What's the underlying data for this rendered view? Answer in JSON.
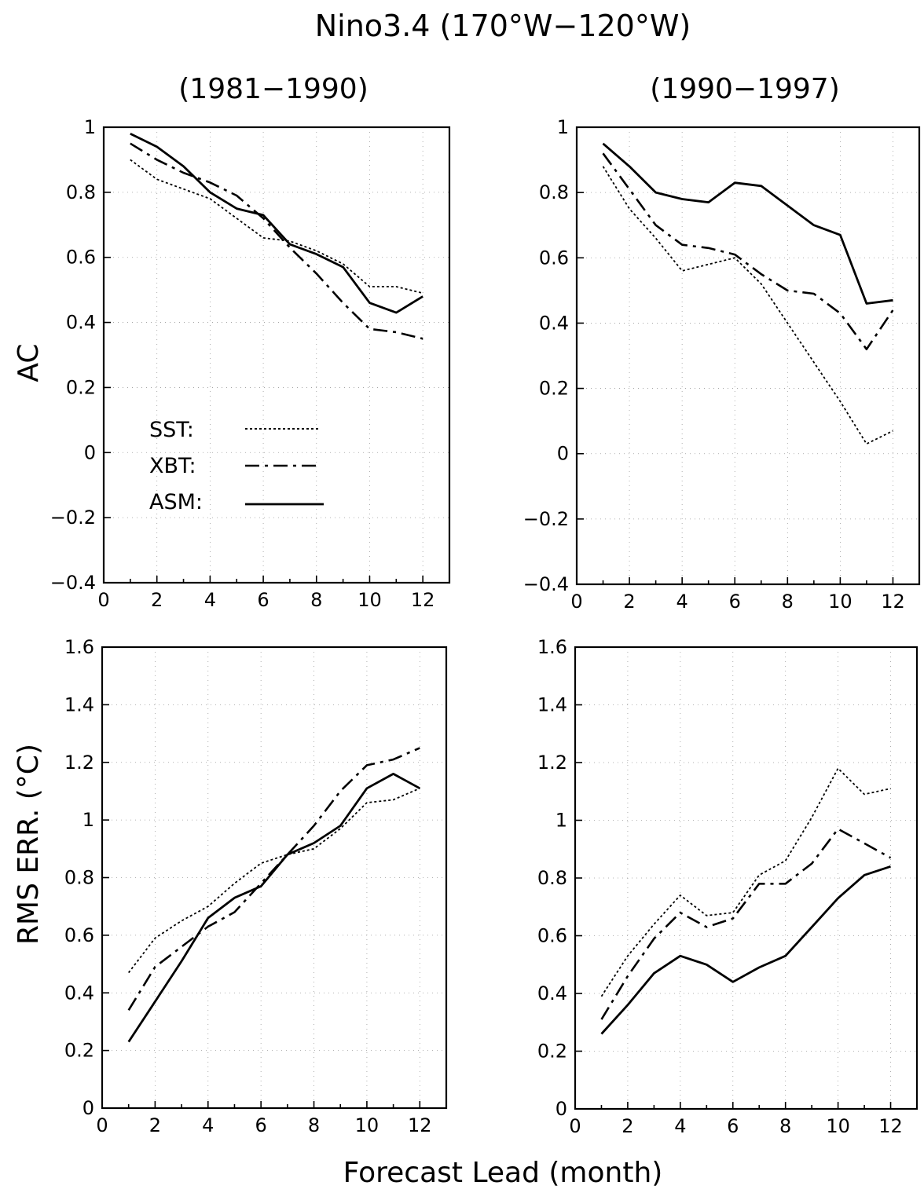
{
  "figure": {
    "title": "Nino3.4 (170°W−120°W)",
    "col_titles": [
      "(1981−1990)",
      "(1990−1997)"
    ],
    "row_ylabels": [
      "AC",
      "RMS ERR. (°C)"
    ],
    "xlabel": "Forecast Lead (month)",
    "legend": [
      {
        "label": "SST:",
        "style": "dotted"
      },
      {
        "label": "XBT:",
        "style": "dashdot"
      },
      {
        "label": "ASM:",
        "style": "solid"
      }
    ]
  },
  "chart_data": [
    {
      "type": "line",
      "panel": "top-left",
      "title": "(1981−1990)",
      "ylabel": "AC",
      "xlim": [
        0,
        13
      ],
      "ylim": [
        -0.4,
        1
      ],
      "xticks": [
        "0",
        "2",
        "4",
        "6",
        "8",
        "10",
        "12"
      ],
      "yticks": [
        "−0.4",
        "−0.2",
        "0",
        "0.2",
        "0.4",
        "0.6",
        "0.8",
        "1"
      ],
      "ytick_values": [
        -0.4,
        -0.2,
        0,
        0.2,
        0.4,
        0.6,
        0.8,
        1
      ],
      "grid": true,
      "legend_position": "lower-left",
      "x": [
        1,
        2,
        3,
        4,
        5,
        6,
        7,
        8,
        9,
        10,
        11,
        12
      ],
      "series": [
        {
          "name": "SST",
          "style": "dotted",
          "values": [
            0.9,
            0.84,
            0.81,
            0.78,
            0.72,
            0.66,
            0.65,
            0.62,
            0.58,
            0.51,
            0.51,
            0.49
          ]
        },
        {
          "name": "XBT",
          "style": "dashdot",
          "values": [
            0.95,
            0.9,
            0.86,
            0.83,
            0.79,
            0.72,
            0.63,
            0.55,
            0.46,
            0.38,
            0.37,
            0.35
          ]
        },
        {
          "name": "ASM",
          "style": "solid",
          "values": [
            0.98,
            0.94,
            0.88,
            0.8,
            0.75,
            0.73,
            0.64,
            0.61,
            0.57,
            0.46,
            0.43,
            0.48
          ]
        }
      ]
    },
    {
      "type": "line",
      "panel": "top-right",
      "title": "(1990−1997)",
      "ylabel": "",
      "xlim": [
        0,
        13
      ],
      "ylim": [
        -0.4,
        1
      ],
      "xticks": [
        "0",
        "2",
        "4",
        "6",
        "8",
        "10",
        "12"
      ],
      "yticks": [
        "−0.4",
        "−0.2",
        "0",
        "0.2",
        "0.4",
        "0.6",
        "0.8",
        "1"
      ],
      "ytick_values": [
        -0.4,
        -0.2,
        0,
        0.2,
        0.4,
        0.6,
        0.8,
        1
      ],
      "grid": true,
      "x": [
        1,
        2,
        3,
        4,
        5,
        6,
        7,
        8,
        9,
        10,
        11,
        12
      ],
      "series": [
        {
          "name": "SST",
          "style": "dotted",
          "values": [
            0.88,
            0.75,
            0.66,
            0.56,
            0.58,
            0.6,
            0.52,
            0.4,
            0.28,
            0.16,
            0.03,
            0.07
          ]
        },
        {
          "name": "XBT",
          "style": "dashdot",
          "values": [
            0.92,
            0.81,
            0.7,
            0.64,
            0.63,
            0.61,
            0.55,
            0.5,
            0.49,
            0.43,
            0.32,
            0.44
          ]
        },
        {
          "name": "ASM",
          "style": "solid",
          "values": [
            0.95,
            0.88,
            0.8,
            0.78,
            0.77,
            0.83,
            0.82,
            0.76,
            0.7,
            0.67,
            0.46,
            0.47
          ]
        }
      ]
    },
    {
      "type": "line",
      "panel": "bottom-left",
      "title": "",
      "ylabel": "RMS ERR. (°C)",
      "xlim": [
        0,
        13
      ],
      "ylim": [
        0,
        1.6
      ],
      "xticks": [
        "0",
        "2",
        "4",
        "6",
        "8",
        "10",
        "12"
      ],
      "yticks": [
        "0",
        "0.2",
        "0.4",
        "0.6",
        "0.8",
        "1",
        "1.2",
        "1.4",
        "1.6"
      ],
      "ytick_values": [
        0,
        0.2,
        0.4,
        0.6,
        0.8,
        1,
        1.2,
        1.4,
        1.6
      ],
      "grid": true,
      "x": [
        1,
        2,
        3,
        4,
        5,
        6,
        7,
        8,
        9,
        10,
        11,
        12
      ],
      "series": [
        {
          "name": "SST",
          "style": "dotted",
          "values": [
            0.47,
            0.59,
            0.65,
            0.7,
            0.78,
            0.85,
            0.88,
            0.9,
            0.97,
            1.06,
            1.07,
            1.11
          ]
        },
        {
          "name": "XBT",
          "style": "dashdot",
          "values": [
            0.34,
            0.49,
            0.56,
            0.63,
            0.68,
            0.78,
            0.88,
            0.98,
            1.1,
            1.19,
            1.21,
            1.25
          ]
        },
        {
          "name": "ASM",
          "style": "solid",
          "values": [
            0.23,
            0.37,
            0.51,
            0.66,
            0.73,
            0.77,
            0.88,
            0.92,
            0.98,
            1.11,
            1.16,
            1.11
          ]
        }
      ]
    },
    {
      "type": "line",
      "panel": "bottom-right",
      "title": "",
      "ylabel": "",
      "xlim": [
        0,
        13
      ],
      "ylim": [
        0,
        1.6
      ],
      "xticks": [
        "0",
        "2",
        "4",
        "6",
        "8",
        "10",
        "12"
      ],
      "yticks": [
        "0",
        "0.2",
        "0.4",
        "0.6",
        "0.8",
        "1",
        "1.2",
        "1.4",
        "1.6"
      ],
      "ytick_values": [
        0,
        0.2,
        0.4,
        0.6,
        0.8,
        1,
        1.2,
        1.4,
        1.6
      ],
      "grid": true,
      "x": [
        1,
        2,
        3,
        4,
        5,
        6,
        7,
        8,
        9,
        10,
        11,
        12
      ],
      "series": [
        {
          "name": "SST",
          "style": "dotted",
          "values": [
            0.39,
            0.53,
            0.64,
            0.74,
            0.67,
            0.68,
            0.81,
            0.86,
            1.01,
            1.18,
            1.09,
            1.11
          ]
        },
        {
          "name": "XBT",
          "style": "dashdot",
          "values": [
            0.31,
            0.46,
            0.59,
            0.68,
            0.63,
            0.66,
            0.78,
            0.78,
            0.85,
            0.97,
            0.92,
            0.87
          ]
        },
        {
          "name": "ASM",
          "style": "solid",
          "values": [
            0.26,
            0.36,
            0.47,
            0.53,
            0.5,
            0.44,
            0.49,
            0.53,
            0.63,
            0.73,
            0.81,
            0.84
          ]
        }
      ]
    }
  ]
}
